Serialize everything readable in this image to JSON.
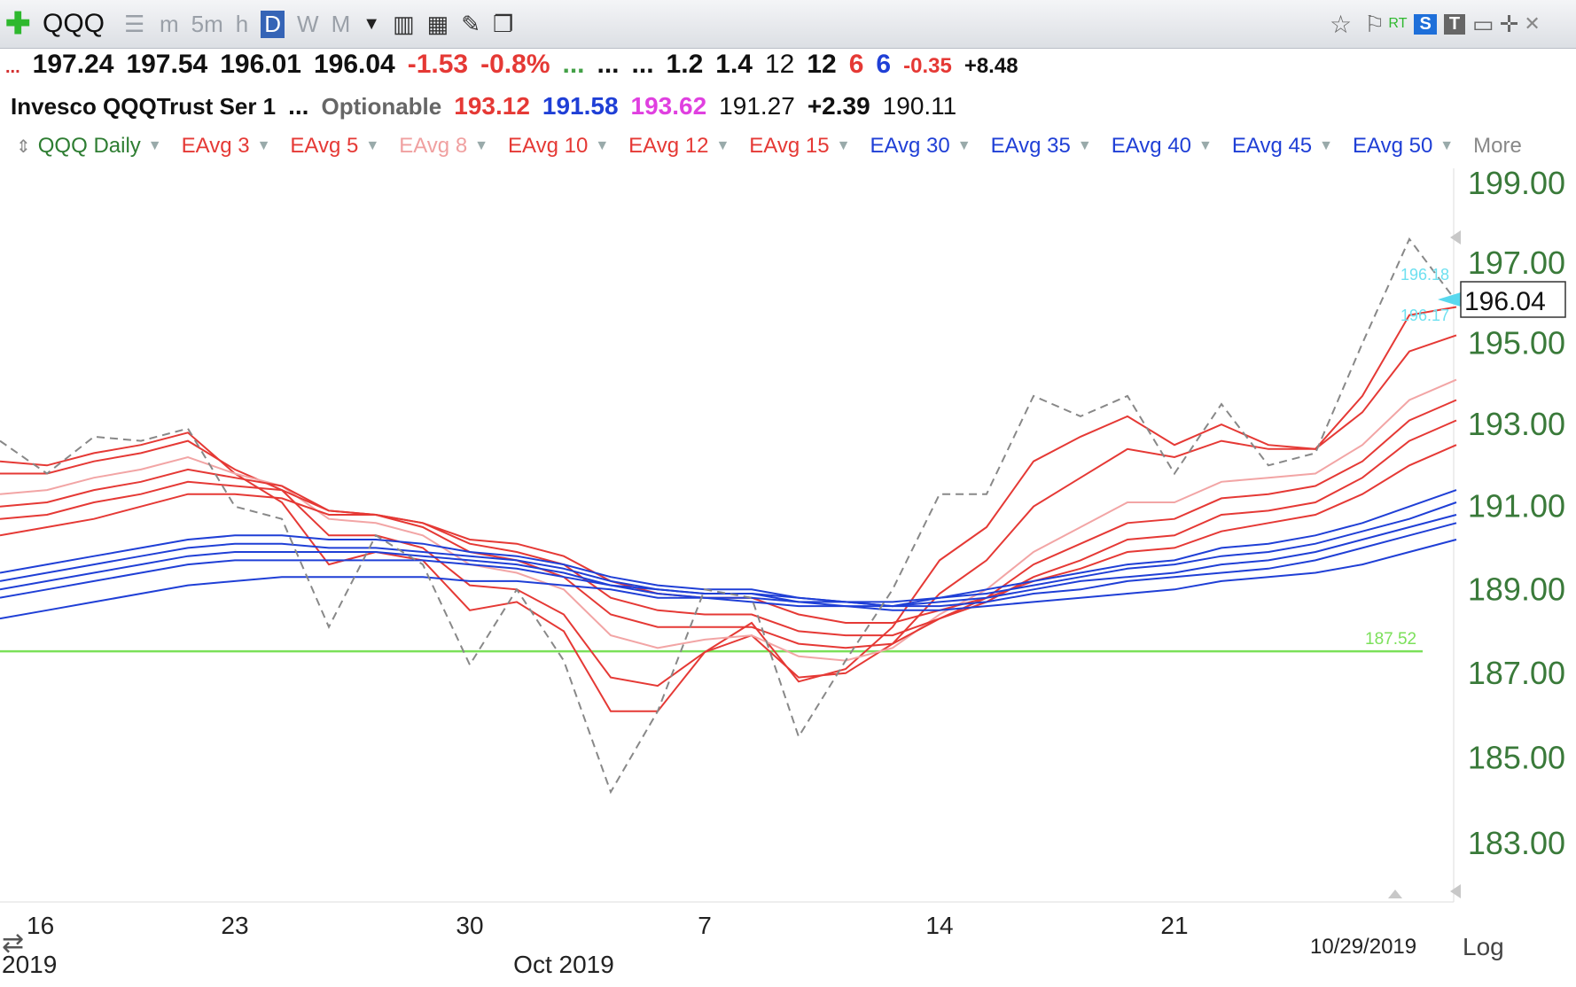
{
  "toolbar": {
    "symbol": "QQQ",
    "timeframes": [
      "m",
      "5m",
      "h",
      "D",
      "W",
      "M"
    ],
    "active_timeframe": "D",
    "right_badges": [
      "RT",
      "S",
      "T"
    ]
  },
  "quote_row1": {
    "open": "197.24",
    "high": "197.54",
    "low": "196.01",
    "close": "196.04",
    "change": "-1.53",
    "change_pct": "-0.8%",
    "dots_a": "...",
    "dots_b": "...",
    "dots_c": "...",
    "v1": "1.2",
    "v2": "1.4",
    "v3": "12",
    "v4": "12",
    "v5": "6",
    "v6": "6",
    "v7": "-0.35",
    "v8": "+8.48"
  },
  "quote_row2": {
    "name": "Invesco QQQTrust Ser 1",
    "dots": "...",
    "optionable": "Optionable",
    "p1": "193.12",
    "p2": "191.58",
    "p3": "193.62",
    "p4": "191.27",
    "p5": "+2.39",
    "p6": "190.11"
  },
  "legend": {
    "items": [
      {
        "label": "QQQ Daily",
        "color": "#2e7d32"
      },
      {
        "label": "EAvg 3",
        "color": "#e53935"
      },
      {
        "label": "EAvg 5",
        "color": "#e53935"
      },
      {
        "label": "EAvg 8",
        "color": "#f0a0a0"
      },
      {
        "label": "EAvg 10",
        "color": "#e53935"
      },
      {
        "label": "EAvg 12",
        "color": "#e53935"
      },
      {
        "label": "EAvg 15",
        "color": "#e53935"
      },
      {
        "label": "EAvg 30",
        "color": "#1f3fd6"
      },
      {
        "label": "EAvg 35",
        "color": "#1f3fd6"
      },
      {
        "label": "EAvg 40",
        "color": "#1f3fd6"
      },
      {
        "label": "EAvg 45",
        "color": "#1f3fd6"
      },
      {
        "label": "EAvg 50",
        "color": "#1f3fd6"
      }
    ],
    "more": "More"
  },
  "chart_data": {
    "type": "line",
    "scale": "log",
    "scale_label": "Log",
    "date_label": "10/29/2019",
    "current_price_label": "196.04",
    "top_ref": "196.18",
    "bottom_ref": "196.17",
    "ylim": [
      182,
      200
    ],
    "yticks": [
      "199.00",
      "197.00",
      "195.00",
      "193.00",
      "191.00",
      "189.00",
      "187.00",
      "185.00",
      "183.00"
    ],
    "xticks": [
      {
        "day": "16",
        "i": 0
      },
      {
        "day": "23",
        "i": 5
      },
      {
        "day": "30",
        "i": 10
      },
      {
        "day": "7",
        "i": 15
      },
      {
        "day": "14",
        "i": 20
      },
      {
        "day": "21",
        "i": 25
      }
    ],
    "xlabels_sub": [
      {
        "label": "2019",
        "i": 0
      },
      {
        "label": "Oct 2019",
        "i": 12
      }
    ],
    "horizontal_line": {
      "value": 187.52,
      "label": "187.52",
      "color": "#7be05a"
    },
    "price": [
      192.6,
      191.8,
      192.7,
      192.6,
      192.9,
      191.0,
      190.7,
      188.1,
      190.3,
      189.6,
      187.2,
      189.0,
      187.3,
      184.2,
      186.1,
      189.0,
      188.8,
      185.5,
      187.3,
      189.0,
      191.3,
      191.3,
      193.7,
      193.2,
      193.7,
      191.8,
      193.5,
      192.0,
      192.3,
      195.0,
      197.6,
      196.04
    ],
    "series": [
      {
        "values": [
          192.1,
          192.0,
          192.3,
          192.5,
          192.8,
          191.8,
          191.1,
          189.6,
          189.9,
          189.7,
          188.5,
          188.7,
          188.0,
          186.1,
          186.1,
          187.5,
          188.2,
          186.8,
          187.1,
          188.1,
          189.7,
          190.5,
          192.1,
          192.7,
          193.2,
          192.5,
          193.0,
          192.5,
          192.4,
          193.7,
          195.7,
          195.9
        ],
        "color": "#e53935"
      },
      {
        "values": [
          191.8,
          191.8,
          192.1,
          192.3,
          192.6,
          191.9,
          191.4,
          190.3,
          190.3,
          190.0,
          189.1,
          189.0,
          188.4,
          186.9,
          186.7,
          187.5,
          187.9,
          186.9,
          187.0,
          187.7,
          188.9,
          189.7,
          191.0,
          191.7,
          192.4,
          192.2,
          192.6,
          192.4,
          192.4,
          193.3,
          194.8,
          195.2
        ],
        "color": "#e53935"
      },
      {
        "values": [
          191.3,
          191.4,
          191.7,
          191.9,
          192.2,
          191.8,
          191.5,
          190.7,
          190.6,
          190.3,
          189.6,
          189.4,
          189.0,
          187.9,
          187.6,
          187.8,
          187.9,
          187.4,
          187.3,
          187.6,
          188.4,
          189.0,
          189.9,
          190.5,
          191.1,
          191.1,
          191.6,
          191.7,
          191.8,
          192.5,
          193.6,
          194.1
        ],
        "color": "#f2a5a5"
      },
      {
        "values": [
          191.0,
          191.1,
          191.4,
          191.6,
          191.9,
          191.7,
          191.5,
          190.9,
          190.8,
          190.5,
          189.9,
          189.7,
          189.3,
          188.4,
          188.1,
          188.1,
          188.1,
          187.7,
          187.6,
          187.7,
          188.3,
          188.8,
          189.6,
          190.1,
          190.6,
          190.7,
          191.2,
          191.3,
          191.5,
          192.1,
          193.1,
          193.6
        ],
        "color": "#e53935"
      },
      {
        "values": [
          190.7,
          190.8,
          191.1,
          191.3,
          191.6,
          191.5,
          191.4,
          190.9,
          190.8,
          190.6,
          190.1,
          189.9,
          189.6,
          188.8,
          188.5,
          188.4,
          188.4,
          188.0,
          187.9,
          187.9,
          188.3,
          188.7,
          189.3,
          189.7,
          190.2,
          190.3,
          190.8,
          190.9,
          191.1,
          191.7,
          192.6,
          193.1
        ],
        "color": "#e53935"
      },
      {
        "values": [
          190.3,
          190.5,
          190.7,
          191.0,
          191.3,
          191.3,
          191.2,
          190.8,
          190.8,
          190.6,
          190.2,
          190.1,
          189.8,
          189.2,
          188.9,
          188.8,
          188.8,
          188.4,
          188.2,
          188.2,
          188.5,
          188.8,
          189.2,
          189.5,
          189.9,
          190.0,
          190.4,
          190.6,
          190.8,
          191.3,
          192.0,
          192.5
        ],
        "color": "#e53935"
      },
      {
        "values": [
          189.4,
          189.6,
          189.8,
          190.0,
          190.2,
          190.3,
          190.3,
          190.2,
          190.2,
          190.1,
          189.9,
          189.8,
          189.6,
          189.3,
          189.1,
          189.0,
          189.0,
          188.8,
          188.7,
          188.7,
          188.8,
          189.0,
          189.2,
          189.4,
          189.6,
          189.7,
          190.0,
          190.1,
          190.3,
          190.6,
          191.0,
          191.4
        ],
        "color": "#1f3fd6"
      },
      {
        "values": [
          189.2,
          189.4,
          189.6,
          189.8,
          190.0,
          190.1,
          190.1,
          190.0,
          190.0,
          189.9,
          189.8,
          189.7,
          189.5,
          189.2,
          189.0,
          188.9,
          188.9,
          188.8,
          188.7,
          188.6,
          188.8,
          188.9,
          189.1,
          189.3,
          189.5,
          189.6,
          189.8,
          189.9,
          190.1,
          190.4,
          190.7,
          191.1
        ],
        "color": "#1f3fd6"
      },
      {
        "values": [
          189.0,
          189.2,
          189.4,
          189.6,
          189.8,
          189.9,
          189.9,
          189.9,
          189.9,
          189.8,
          189.7,
          189.6,
          189.4,
          189.1,
          189.0,
          188.9,
          188.9,
          188.7,
          188.7,
          188.6,
          188.7,
          188.8,
          189.0,
          189.2,
          189.3,
          189.4,
          189.6,
          189.7,
          189.9,
          190.2,
          190.5,
          190.8
        ],
        "color": "#1f3fd6"
      },
      {
        "values": [
          188.8,
          189.0,
          189.2,
          189.4,
          189.6,
          189.7,
          189.7,
          189.7,
          189.7,
          189.7,
          189.6,
          189.5,
          189.3,
          189.1,
          188.9,
          188.8,
          188.8,
          188.7,
          188.6,
          188.6,
          188.6,
          188.7,
          188.9,
          189.0,
          189.2,
          189.3,
          189.4,
          189.5,
          189.7,
          190.0,
          190.3,
          190.6
        ],
        "color": "#1f3fd6"
      },
      {
        "values": [
          188.3,
          188.5,
          188.7,
          188.9,
          189.1,
          189.2,
          189.3,
          189.3,
          189.3,
          189.3,
          189.2,
          189.2,
          189.1,
          189.0,
          188.8,
          188.8,
          188.7,
          188.6,
          188.6,
          188.5,
          188.5,
          188.6,
          188.7,
          188.8,
          188.9,
          189.0,
          189.2,
          189.3,
          189.4,
          189.6,
          189.9,
          190.2
        ],
        "color": "#1f3fd6"
      }
    ]
  }
}
